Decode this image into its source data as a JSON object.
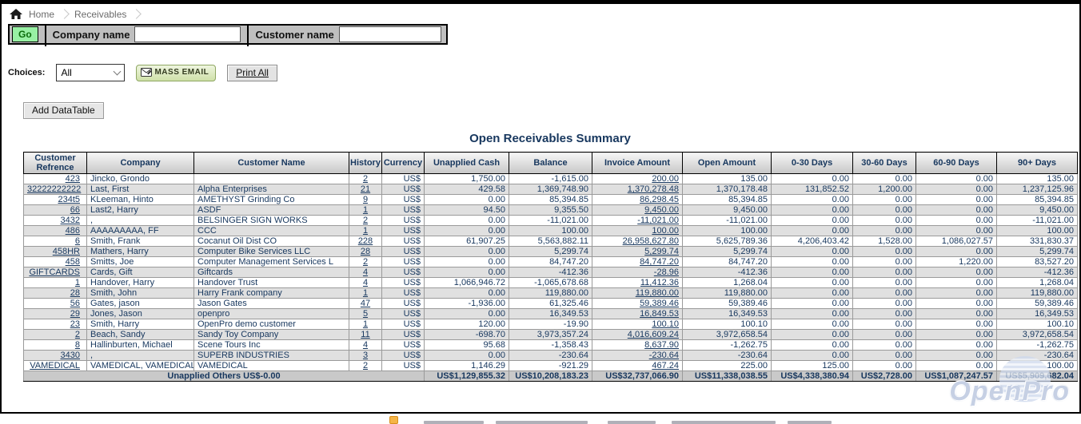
{
  "breadcrumb": {
    "items": [
      "Home",
      "Receivables"
    ]
  },
  "search_bar": {
    "go_label": "Go",
    "company_label": "Company name",
    "company_value": "",
    "customer_label": "Customer name",
    "customer_value": ""
  },
  "choices": {
    "label": "Choices:",
    "selected_option": "All",
    "mass_email_label": "MASS EMAIL",
    "print_all_label": "Print All"
  },
  "add_datatable_label": "Add DataTable",
  "title": "Open Receivables Summary",
  "table": {
    "columns": [
      "Customer Refrence",
      "Company",
      "Customer Name",
      "History",
      "Currency",
      "Unapplied Cash",
      "Balance",
      "Invoice Amount",
      "Open Amount",
      "0-30 Days",
      "30-60 Days",
      "60-90 Days",
      "90+ Days"
    ],
    "rows": [
      {
        "ref": "423",
        "company": "Jincko, Grondo",
        "name": "",
        "history": "2",
        "currency": "US$",
        "unapplied": "1,750.00",
        "balance": "-1,615.00",
        "invoice": "200.00",
        "open": "135.00",
        "d030": "0.00",
        "d3060": "0.00",
        "d6090": "0.00",
        "d90": "135.00"
      },
      {
        "ref": "32222222222",
        "company": "Last, First",
        "name": "Alpha Enterprises",
        "history": "21",
        "currency": "US$",
        "unapplied": "429.58",
        "balance": "1,369,748.90",
        "invoice": "1,370,278.48",
        "open": "1,370,178.48",
        "d030": "131,852.52",
        "d3060": "1,200.00",
        "d6090": "0.00",
        "d90": "1,237,125.96"
      },
      {
        "ref": "234t5",
        "company": "KLeeman, Hinto",
        "name": "AMETHYST Grinding Co",
        "history": "9",
        "currency": "US$",
        "unapplied": "0.00",
        "balance": "85,394.85",
        "invoice": "86,298.45",
        "open": "85,394.85",
        "d030": "0.00",
        "d3060": "0.00",
        "d6090": "0.00",
        "d90": "85,394.85"
      },
      {
        "ref": "66",
        "company": "Last2, Harry",
        "name": "ASDF",
        "history": "1",
        "currency": "US$",
        "unapplied": "94.50",
        "balance": "9,355.50",
        "invoice": "9,450.00",
        "open": "9,450.00",
        "d030": "0.00",
        "d3060": "0.00",
        "d6090": "0.00",
        "d90": "9,450.00"
      },
      {
        "ref": "3432",
        "company": ",",
        "name": "BELSINGER SIGN WORKS",
        "history": "2",
        "currency": "US$",
        "unapplied": "0.00",
        "balance": "-11,021.00",
        "invoice": "-11,021.00",
        "open": "-11,021.00",
        "d030": "0.00",
        "d3060": "0.00",
        "d6090": "0.00",
        "d90": "-11,021.00"
      },
      {
        "ref": "486",
        "company": "AAAAAAAAA, FF",
        "name": "CCC",
        "history": "1",
        "currency": "US$",
        "unapplied": "0.00",
        "balance": "100.00",
        "invoice": "100.00",
        "open": "100.00",
        "d030": "0.00",
        "d3060": "0.00",
        "d6090": "0.00",
        "d90": "100.00"
      },
      {
        "ref": "6",
        "company": "Smith, Frank",
        "name": "Cocanut Oil Dist CO",
        "history": "228",
        "currency": "US$",
        "unapplied": "61,907.25",
        "balance": "5,563,882.11",
        "invoice": "26,958,627.80",
        "open": "5,625,789.36",
        "d030": "4,206,403.42",
        "d3060": "1,528.00",
        "d6090": "1,086,027.57",
        "d90": "331,830.37"
      },
      {
        "ref": "458HR",
        "company": "Mathers, Harry",
        "name": "Computer Bike Services LLC",
        "history": "28",
        "currency": "US$",
        "unapplied": "0.00",
        "balance": "5,299.74",
        "invoice": "5,299.74",
        "open": "5,299.74",
        "d030": "0.00",
        "d3060": "0.00",
        "d6090": "0.00",
        "d90": "5,299.74"
      },
      {
        "ref": "458",
        "company": "Smitts, Joe",
        "name": "Computer Management Services L",
        "history": "2",
        "currency": "US$",
        "unapplied": "0.00",
        "balance": "84,747.20",
        "invoice": "84,747.20",
        "open": "84,747.20",
        "d030": "0.00",
        "d3060": "0.00",
        "d6090": "1,220.00",
        "d90": "83,527.20"
      },
      {
        "ref": "GIFTCARDS",
        "company": "Cards, Gift",
        "name": "Giftcards",
        "history": "4",
        "currency": "US$",
        "unapplied": "0.00",
        "balance": "-412.36",
        "invoice": "-28.96",
        "open": "-412.36",
        "d030": "0.00",
        "d3060": "0.00",
        "d6090": "0.00",
        "d90": "-412.36"
      },
      {
        "ref": "1",
        "company": "Handover, Harry",
        "name": "Handover Trust",
        "history": "4",
        "currency": "US$",
        "unapplied": "1,066,946.72",
        "balance": "-1,065,678.68",
        "invoice": "11,412.36",
        "open": "1,268.04",
        "d030": "0.00",
        "d3060": "0.00",
        "d6090": "0.00",
        "d90": "1,268.04"
      },
      {
        "ref": "28",
        "company": "Smith, John",
        "name": "Harry Frank company",
        "history": "1",
        "currency": "US$",
        "unapplied": "0.00",
        "balance": "119,880.00",
        "invoice": "119,880.00",
        "open": "119,880.00",
        "d030": "0.00",
        "d3060": "0.00",
        "d6090": "0.00",
        "d90": "119,880.00"
      },
      {
        "ref": "56",
        "company": "Gates, jason",
        "name": "Jason Gates",
        "history": "47",
        "currency": "US$",
        "unapplied": "-1,936.00",
        "balance": "61,325.46",
        "invoice": "59,389.46",
        "open": "59,389.46",
        "d030": "0.00",
        "d3060": "0.00",
        "d6090": "0.00",
        "d90": "59,389.46"
      },
      {
        "ref": "29",
        "company": "Jones, Jason",
        "name": "openpro",
        "history": "5",
        "currency": "US$",
        "unapplied": "0.00",
        "balance": "16,349.53",
        "invoice": "16,849.53",
        "open": "16,349.53",
        "d030": "0.00",
        "d3060": "0.00",
        "d6090": "0.00",
        "d90": "16,349.53"
      },
      {
        "ref": "23",
        "company": "Smith, Harry",
        "name": "OpenPro demo customer",
        "history": "1",
        "currency": "US$",
        "unapplied": "120.00",
        "balance": "-19.90",
        "invoice": "100.10",
        "open": "100.10",
        "d030": "0.00",
        "d3060": "0.00",
        "d6090": "0.00",
        "d90": "100.10"
      },
      {
        "ref": "2",
        "company": "Beach, Sandy",
        "name": "Sandy Toy Company",
        "history": "11",
        "currency": "US$",
        "unapplied": "-698.70",
        "balance": "3,973,357.24",
        "invoice": "4,016,609.24",
        "open": "3,972,658.54",
        "d030": "0.00",
        "d3060": "0.00",
        "d6090": "0.00",
        "d90": "3,972,658.54"
      },
      {
        "ref": "8",
        "company": "Hallinburten, Michael",
        "name": "Scene Tours Inc",
        "history": "4",
        "currency": "US$",
        "unapplied": "95.68",
        "balance": "-1,358.43",
        "invoice": "8,637.90",
        "open": "-1,262.75",
        "d030": "0.00",
        "d3060": "0.00",
        "d6090": "0.00",
        "d90": "-1,262.75"
      },
      {
        "ref": "3430",
        "company": ",",
        "name": "SUPERB INDUSTRIES",
        "history": "3",
        "currency": "US$",
        "unapplied": "0.00",
        "balance": "-230.64",
        "invoice": "-230.64",
        "open": "-230.64",
        "d030": "0.00",
        "d3060": "0.00",
        "d6090": "0.00",
        "d90": "-230.64"
      },
      {
        "ref": "VAMEDICAL",
        "company": "VAMEDICAL, VAMEDICAL",
        "name": "VAMEDICAL",
        "history": "2",
        "currency": "US$",
        "unapplied": "1,146.29",
        "balance": "-921.29",
        "invoice": "467.24",
        "open": "225.00",
        "d030": "125.00",
        "d3060": "0.00",
        "d6090": "0.00",
        "d90": "100.00"
      }
    ],
    "footer": {
      "label": "Unapplied Others US$-0.00",
      "totals": [
        "US$1,129,855.32",
        "US$10,208,183.23",
        "US$32,737,066.90",
        "US$11,338,038.55",
        "US$4,338,380.94",
        "US$2,728.00",
        "US$1,087,247.57",
        "US$5,909,682.04"
      ]
    }
  },
  "watermark": "OpenPro",
  "colors": {
    "accent_navy": "#17375e",
    "go_button_green": "#98f0a4",
    "mass_email_green": "#cfe0a8",
    "row_alt_gray": "#e0e0e0",
    "bar_gray": "#bfbfbf"
  }
}
